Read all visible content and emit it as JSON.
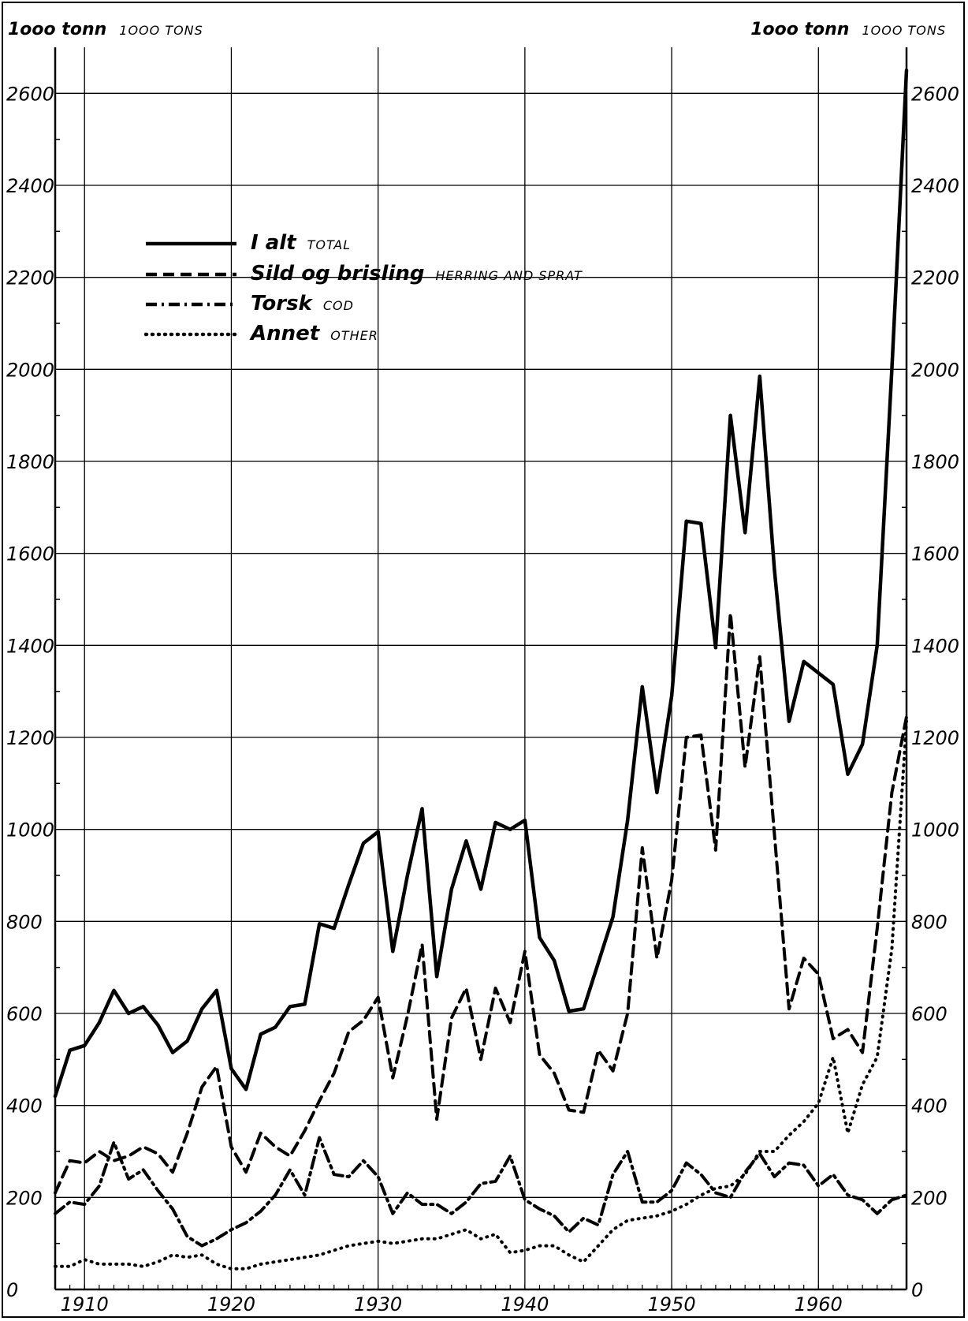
{
  "chart_data": {
    "type": "line",
    "y_unit_left": {
      "main": "1ooo tonn",
      "sub": "1OOO TONS"
    },
    "y_unit_right": {
      "main": "1ooo tonn",
      "sub": "1OOO TONS"
    },
    "ylim": [
      0,
      2700
    ],
    "xlim": [
      1908,
      1966
    ],
    "y_ticks": [
      0,
      200,
      400,
      600,
      800,
      1000,
      1200,
      1400,
      1600,
      1800,
      2000,
      2200,
      2400,
      2600
    ],
    "y_tick_labels": [
      "0",
      "200",
      "400",
      "600",
      "800",
      "1000",
      "1200",
      "1400",
      "1600",
      "1800",
      "2000",
      "2200",
      "2400",
      "2600"
    ],
    "x_ticks": [
      1910,
      1920,
      1930,
      1940,
      1950,
      1960
    ],
    "x_tick_labels": [
      "1910",
      "1920",
      "1930",
      "1940",
      "1950",
      "1960"
    ],
    "grid": true,
    "legend_position": "top-left",
    "x": [
      1908,
      1909,
      1910,
      1911,
      1912,
      1913,
      1914,
      1915,
      1916,
      1917,
      1918,
      1919,
      1920,
      1921,
      1922,
      1923,
      1924,
      1925,
      1926,
      1927,
      1928,
      1929,
      1930,
      1931,
      1932,
      1933,
      1934,
      1935,
      1936,
      1937,
      1938,
      1939,
      1940,
      1941,
      1942,
      1943,
      1944,
      1945,
      1946,
      1947,
      1948,
      1949,
      1950,
      1951,
      1952,
      1953,
      1954,
      1955,
      1956,
      1957,
      1958,
      1959,
      1960,
      1961,
      1962,
      1963,
      1964,
      1965,
      1966
    ],
    "series": [
      {
        "name": "I alt",
        "name_en": "TOTAL",
        "style": "solid",
        "values": [
          420,
          520,
          530,
          580,
          650,
          600,
          615,
          575,
          515,
          540,
          610,
          650,
          480,
          435,
          555,
          570,
          615,
          620,
          795,
          785,
          880,
          970,
          995,
          735,
          900,
          1045,
          680,
          870,
          975,
          870,
          1015,
          1000,
          1020,
          765,
          715,
          605,
          610,
          710,
          810,
          1020,
          1310,
          1080,
          1290,
          1670,
          1665,
          1395,
          1900,
          1645,
          1985,
          1565,
          1235,
          1365,
          1340,
          1315,
          1120,
          1185,
          1400,
          2000,
          2650
        ]
      },
      {
        "name": "Sild og brisling",
        "name_en": "HERRING AND SPRAT",
        "style": "dashed",
        "values": [
          210,
          280,
          275,
          300,
          280,
          290,
          310,
          295,
          255,
          340,
          440,
          485,
          310,
          255,
          340,
          310,
          290,
          345,
          410,
          470,
          560,
          585,
          635,
          460,
          595,
          750,
          370,
          590,
          655,
          500,
          655,
          580,
          735,
          510,
          470,
          390,
          385,
          520,
          475,
          600,
          960,
          720,
          890,
          1200,
          1205,
          955,
          1470,
          1135,
          1375,
          990,
          610,
          720,
          685,
          545,
          565,
          515,
          785,
          1080,
          1245
        ]
      },
      {
        "name": "Torsk",
        "name_en": "COD",
        "style": "dashdot",
        "values": [
          165,
          190,
          185,
          225,
          320,
          240,
          260,
          215,
          175,
          115,
          95,
          110,
          130,
          145,
          170,
          205,
          260,
          205,
          330,
          250,
          245,
          280,
          245,
          165,
          210,
          185,
          185,
          165,
          190,
          230,
          235,
          290,
          195,
          175,
          160,
          125,
          155,
          140,
          250,
          300,
          190,
          190,
          215,
          275,
          250,
          210,
          200,
          255,
          295,
          245,
          275,
          270,
          225,
          250,
          205,
          195,
          165,
          195,
          205
        ]
      },
      {
        "name": "Annet",
        "name_en": "OTHER",
        "style": "dotted",
        "values": [
          50,
          50,
          65,
          55,
          55,
          55,
          50,
          60,
          75,
          70,
          75,
          55,
          45,
          45,
          55,
          60,
          65,
          70,
          75,
          85,
          95,
          100,
          105,
          100,
          105,
          110,
          110,
          120,
          130,
          110,
          120,
          80,
          85,
          95,
          95,
          75,
          60,
          95,
          130,
          150,
          155,
          160,
          170,
          185,
          205,
          220,
          225,
          250,
          300,
          300,
          335,
          365,
          405,
          505,
          340,
          445,
          505,
          740,
          1235
        ]
      }
    ]
  }
}
